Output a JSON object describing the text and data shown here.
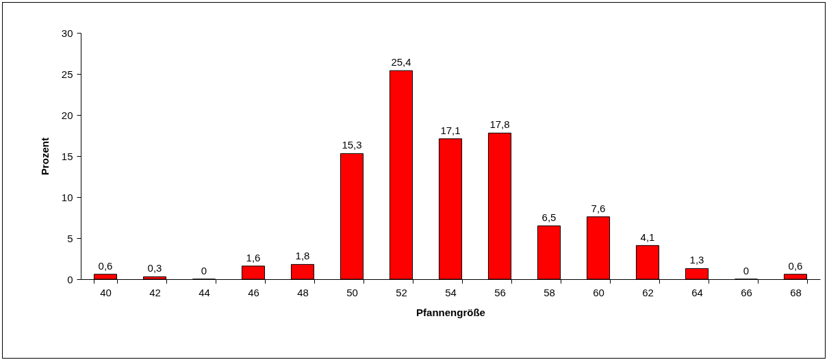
{
  "chart_data": {
    "type": "bar",
    "xlabel": "Pfannengröße",
    "ylabel": "Prozent",
    "categories": [
      "40",
      "42",
      "44",
      "46",
      "48",
      "50",
      "52",
      "54",
      "56",
      "58",
      "60",
      "62",
      "64",
      "66",
      "68"
    ],
    "series": [
      {
        "color": "#ff0000",
        "values": [
          0.6,
          0.3,
          0,
          1.6,
          1.8,
          15.3,
          25.4,
          17.1,
          17.8,
          6.5,
          7.6,
          4.1,
          1.3,
          0,
          0.6
        ],
        "value_labels": [
          "0,6",
          "0,3",
          "0",
          "1,6",
          "1,8",
          "15,3",
          "25,4",
          "17,1",
          "17,8",
          "6,5",
          "7,6",
          "4,1",
          "1,3",
          "0",
          "0,6"
        ]
      }
    ],
    "ylim": [
      0,
      30
    ],
    "yticks": [
      0,
      5,
      10,
      15,
      20,
      25,
      30
    ],
    "grid": false,
    "legend": false
  }
}
